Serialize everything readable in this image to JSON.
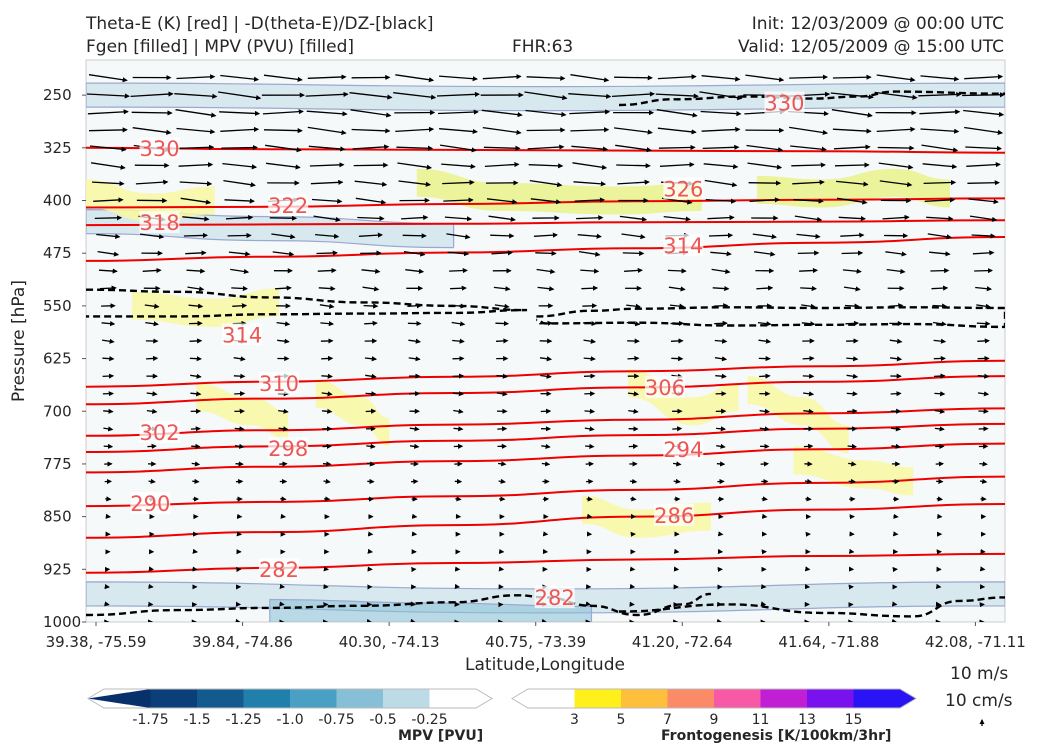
{
  "header": {
    "line1_left": "Theta-E (K) [red] | -D(theta-E)/DZ-[black]",
    "line2_left": "Fgen [filled] | MPV (PVU) [filled]",
    "fhr": "FHR:63",
    "init": "Init: 12/03/2009 @ 00:00 UTC",
    "valid": "Valid: 12/05/2009 @ 15:00 UTC"
  },
  "vector_key": {
    "label1": "10 m/s",
    "label2": "10 cm/s"
  },
  "colorbars": {
    "mpv": {
      "title": "MPV [PVU]",
      "ticks": [
        "-1.75",
        "-1.5",
        "-1.25",
        "-1.0",
        "-0.75",
        "-0.5",
        "-0.25"
      ],
      "colors": [
        "#08306b",
        "#0b3f7a",
        "#135a8f",
        "#2080ab",
        "#4aa0c4",
        "#86bfd6",
        "#bddbe6",
        "#ffffff"
      ]
    },
    "fgen": {
      "title": "Frontogenesis [K/100km/3hr]",
      "ticks": [
        "3",
        "5",
        "7",
        "9",
        "11",
        "13",
        "15"
      ],
      "colors": [
        "#ffffff",
        "#ffef1a",
        "#fdbf3c",
        "#fb8a67",
        "#f859a7",
        "#c11fd4",
        "#7a12f0",
        "#2a14f6"
      ]
    }
  },
  "chart_data": {
    "type": "cross-section",
    "xlabel": "Latitude,Longitude",
    "ylabel": "Pressure [hPa]",
    "x_ticks": [
      "39.38, -75.59",
      "39.84, -74.86",
      "40.30, -74.13",
      "40.75, -73.39",
      "41.20, -72.64",
      "41.64, -71.88",
      "42.08, -71.11"
    ],
    "y_ticks": [
      250,
      325,
      400,
      475,
      550,
      625,
      700,
      775,
      850,
      925,
      1000
    ],
    "ylim": [
      1000,
      200
    ],
    "theta_e_contours": [
      {
        "value": 330,
        "pressure": [
          325,
          327,
          328,
          329,
          330,
          332
        ]
      },
      {
        "value": 322,
        "pressure": [
          410,
          409,
          405,
          401,
          399,
          397
        ]
      },
      {
        "value": 318,
        "pressure": [
          435,
          434,
          433,
          431,
          430,
          428
        ]
      },
      {
        "value": 314,
        "pressure": [
          486,
          480,
          474,
          468,
          460,
          452
        ]
      },
      {
        "value": 310,
        "pressure": [
          665,
          658,
          651,
          643,
          636,
          628
        ]
      },
      {
        "value": 306,
        "pressure": [
          690,
          682,
          674,
          666,
          658,
          650
        ]
      },
      {
        "value": 302,
        "pressure": [
          735,
          727,
          719,
          712,
          703,
          696
        ]
      },
      {
        "value": 298,
        "pressure": [
          758,
          750,
          742,
          734,
          725,
          718
        ]
      },
      {
        "value": 294,
        "pressure": [
          787,
          779,
          771,
          763,
          754,
          746
        ]
      },
      {
        "value": 290,
        "pressure": [
          835,
          829,
          821,
          812,
          802,
          793
        ]
      },
      {
        "value": 286,
        "pressure": [
          880,
          872,
          862,
          850,
          840,
          832
        ]
      },
      {
        "value": 282,
        "pressure": [
          930,
          923,
          916,
          911,
          906,
          903
        ]
      }
    ],
    "theta_e_labels": [
      {
        "text": "330",
        "x": 0.08,
        "p": 327
      },
      {
        "text": "330",
        "x": 0.76,
        "p": 262
      },
      {
        "text": "326",
        "x": 0.65,
        "p": 384
      },
      {
        "text": "322",
        "x": 0.22,
        "p": 408
      },
      {
        "text": "318",
        "x": 0.08,
        "p": 432
      },
      {
        "text": "314",
        "x": 0.65,
        "p": 465
      },
      {
        "text": "314",
        "x": 0.17,
        "p": 592
      },
      {
        "text": "310",
        "x": 0.21,
        "p": 661
      },
      {
        "text": "306",
        "x": 0.63,
        "p": 667
      },
      {
        "text": "302",
        "x": 0.08,
        "p": 731
      },
      {
        "text": "298",
        "x": 0.22,
        "p": 754
      },
      {
        "text": "294",
        "x": 0.65,
        "p": 755
      },
      {
        "text": "290",
        "x": 0.07,
        "p": 832
      },
      {
        "text": "286",
        "x": 0.64,
        "p": 849
      },
      {
        "text": "282",
        "x": 0.21,
        "p": 926
      },
      {
        "text": "282",
        "x": 0.51,
        "p": 966
      }
    ],
    "stability_contours": [
      {
        "x": [
          0.0,
          0.1,
          0.2,
          0.3,
          0.4,
          0.48,
          0.4,
          0.3,
          0.2,
          0.1,
          0.0
        ],
        "pressure": [
          527,
          530,
          538,
          545,
          550,
          556,
          560,
          561,
          562,
          565,
          565
        ]
      },
      {
        "x": [
          0.49,
          0.55,
          0.6,
          0.7,
          0.8,
          0.9,
          1.0,
          1.0,
          0.9,
          0.8,
          0.7,
          0.6,
          0.5,
          0.49
        ],
        "pressure": [
          565,
          557,
          554,
          552,
          553,
          552,
          553,
          580,
          576,
          577,
          578,
          574,
          575,
          570
        ]
      },
      {
        "x": [
          0.0,
          0.1,
          0.2,
          0.3,
          0.4,
          0.47,
          0.5,
          0.55,
          0.6,
          0.65,
          0.68
        ],
        "pressure": [
          990,
          983,
          980,
          977,
          972,
          962,
          965,
          977,
          990,
          975,
          960
        ]
      },
      {
        "x": [
          0.58,
          0.7,
          0.8,
          0.9,
          0.95,
          1.0
        ],
        "pressure": [
          985,
          975,
          987,
          992,
          970,
          965
        ]
      },
      {
        "x": [
          0.58,
          0.64,
          0.72,
          0.79,
          0.84,
          0.88,
          1.0
        ],
        "pressure": [
          264,
          256,
          252,
          255,
          252,
          245,
          248
        ]
      }
    ],
    "wind_vectors": {
      "u_by_pressure": [
        {
          "p": 225,
          "u": 36
        },
        {
          "p": 250,
          "u": 40
        },
        {
          "p": 300,
          "u": 36
        },
        {
          "p": 350,
          "u": 32
        },
        {
          "p": 400,
          "u": 28
        },
        {
          "p": 450,
          "u": 22
        },
        {
          "p": 500,
          "u": 17
        },
        {
          "p": 550,
          "u": 13
        },
        {
          "p": 600,
          "u": 11
        },
        {
          "p": 650,
          "u": 10
        },
        {
          "p": 700,
          "u": 9
        },
        {
          "p": 750,
          "u": 8
        },
        {
          "p": 800,
          "u": 6
        },
        {
          "p": 850,
          "u": 4
        },
        {
          "p": 900,
          "u": 3
        },
        {
          "p": 950,
          "u": 2
        },
        {
          "p": 1000,
          "u": 1
        }
      ],
      "key_speed_ms": 10,
      "key_vertical_cms": 10
    },
    "frontogenesis_regions": [
      {
        "x": [
          0.0,
          0.07,
          0.14
        ],
        "pressure": [
          390,
          410,
          400
        ],
        "level": 3
      },
      {
        "x": [
          0.36,
          0.45,
          0.58,
          0.67
        ],
        "pressure": [
          375,
          395,
          400,
          395
        ],
        "level": 5
      },
      {
        "x": [
          0.73,
          0.8,
          0.88,
          0.94
        ],
        "pressure": [
          385,
          390,
          375,
          390
        ],
        "level": 5
      },
      {
        "x": [
          0.05,
          0.14,
          0.21
        ],
        "pressure": [
          550,
          560,
          545
        ],
        "level": 3
      },
      {
        "x": [
          0.25,
          0.3,
          0.33
        ],
        "pressure": [
          675,
          700,
          730
        ],
        "level": 3
      },
      {
        "x": [
          0.12,
          0.18,
          0.22
        ],
        "pressure": [
          680,
          700,
          720
        ],
        "level": 3
      },
      {
        "x": [
          0.72,
          0.78,
          0.83
        ],
        "pressure": [
          670,
          700,
          740
        ],
        "level": 3
      },
      {
        "x": [
          0.59,
          0.66,
          0.71
        ],
        "pressure": [
          660,
          700,
          680
        ],
        "level": 3
      },
      {
        "x": [
          0.77,
          0.85,
          0.9
        ],
        "pressure": [
          770,
          790,
          800
        ],
        "level": 3
      },
      {
        "x": [
          0.54,
          0.6,
          0.68
        ],
        "pressure": [
          840,
          860,
          850
        ],
        "level": 3
      }
    ],
    "mpv_regions": [
      {
        "x": [
          0.0,
          0.5,
          1.0
        ],
        "pressure": [
          250,
          255,
          250
        ],
        "level": -0.25
      },
      {
        "x": [
          0.0,
          0.2,
          0.4
        ],
        "pressure": [
          430,
          440,
          450
        ],
        "level": -0.25
      },
      {
        "x": [
          0.0,
          0.5,
          1.0
        ],
        "pressure": [
          960,
          970,
          960
        ],
        "level": -0.25
      },
      {
        "x": [
          0.2,
          0.38,
          0.55
        ],
        "pressure": [
          985,
          990,
          995
        ],
        "level": -0.5
      }
    ]
  }
}
